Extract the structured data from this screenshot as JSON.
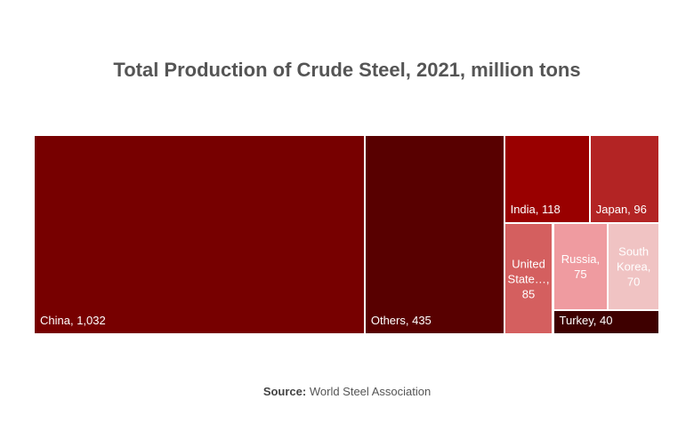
{
  "chart_data": {
    "type": "treemap",
    "title": "Total Production of Crude Steel, 2021, million tons",
    "categories": [
      "China",
      "Others",
      "India",
      "Japan",
      "United State…",
      "Russia",
      "South Korea",
      "Turkey"
    ],
    "values": [
      1032,
      435,
      118,
      96,
      85,
      75,
      70,
      40
    ],
    "value_labels": [
      "1,032",
      "435",
      "118",
      "96",
      "85",
      "75",
      "70",
      "40"
    ],
    "colors": [
      "#770000",
      "#580000",
      "#990000",
      "#b32424",
      "#d45f5f",
      "#ef9ba0",
      "#f0c3c3",
      "#3e0000"
    ],
    "source_label": "Source:",
    "source": "World Steel Association"
  }
}
